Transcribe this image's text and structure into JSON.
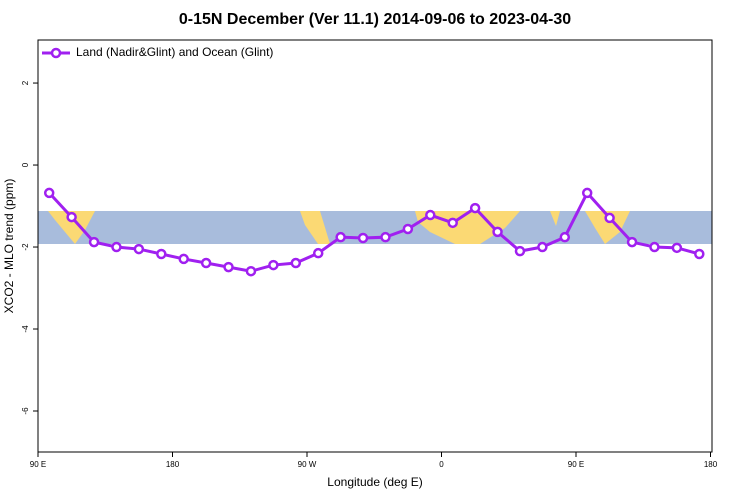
{
  "chart_data": {
    "type": "line",
    "title": "0-15N December (Ver 11.1)   2014-09-06 to 2023-04-30",
    "x_label": "Longitude (deg E)",
    "y_label": "XCO2 - MLO trend (ppm)",
    "x": [
      97.5,
      112.5,
      127.5,
      142.5,
      157.5,
      172.5,
      187.5,
      202.5,
      217.5,
      232.5,
      247.5,
      262.5,
      277.5,
      292.5,
      307.5,
      322.5,
      337.5,
      352.5,
      367.5,
      382.5,
      397.5,
      412.5,
      427.5,
      442.5,
      457.5,
      472.5,
      487.5,
      502.5,
      517.5,
      532.5
    ],
    "series": [
      {
        "name": "Land (Nadir&Glint) and Ocean (Glint)",
        "color": "#a020f0",
        "values": [
          -0.68,
          -1.27,
          -1.88,
          -2.0,
          -2.05,
          -2.17,
          -2.29,
          -2.39,
          -2.49,
          -2.59,
          -2.44,
          -2.39,
          -2.15,
          -1.76,
          -1.78,
          -1.76,
          -1.56,
          -1.22,
          -1.41,
          -1.05,
          -1.63,
          -2.1,
          -2.0,
          -1.76,
          -0.68,
          -1.29,
          -1.88,
          -2.0,
          -2.02,
          -2.17
        ]
      }
    ],
    "xlim": [
      90,
      541
    ],
    "ylim": [
      -7,
      3.05
    ],
    "xticks": [
      {
        "value": 90,
        "label": "90 E"
      },
      {
        "value": 180,
        "label": "180"
      },
      {
        "value": 270,
        "label": "90 W"
      },
      {
        "value": 360,
        "label": "0"
      },
      {
        "value": 450,
        "label": "90 E"
      },
      {
        "value": 540,
        "label": "180"
      }
    ],
    "yticks": [
      -6,
      -4,
      -2,
      0,
      2
    ],
    "legend": "top-left"
  }
}
